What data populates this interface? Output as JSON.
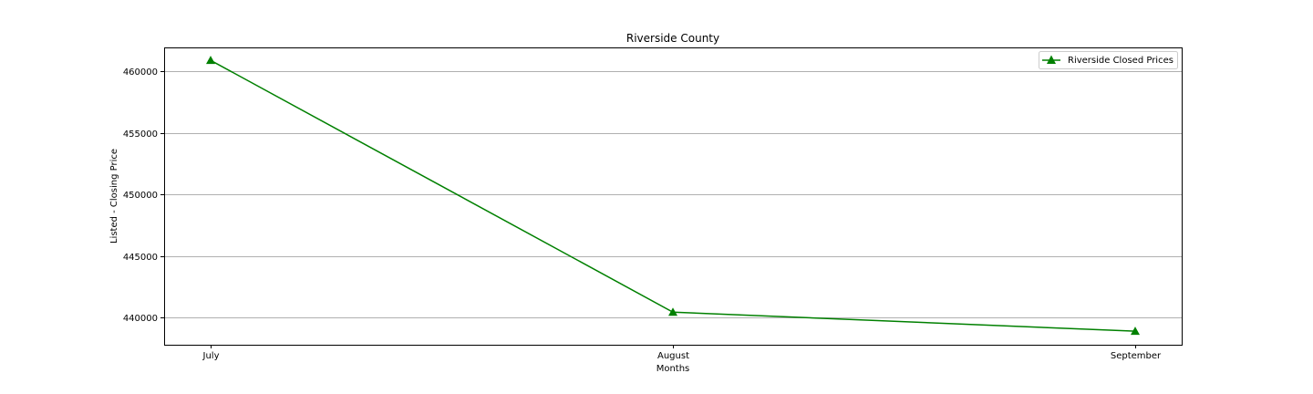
{
  "chart_data": {
    "type": "line",
    "title": "Riverside County",
    "xlabel": "Months",
    "ylabel": "Listed - Closing Price",
    "categories": [
      "July",
      "August",
      "September"
    ],
    "series": [
      {
        "name": "Riverside Closed Prices",
        "values": [
          460900,
          440450,
          438900
        ],
        "color": "#008000",
        "marker": "triangle-up"
      }
    ],
    "ylim": [
      437800,
      461950
    ],
    "yticks": [
      440000,
      445000,
      450000,
      455000,
      460000
    ],
    "ytick_labels": [
      "440000",
      "445000",
      "450000",
      "455000",
      "460000"
    ],
    "grid": "y-major",
    "legend": "top-right"
  }
}
